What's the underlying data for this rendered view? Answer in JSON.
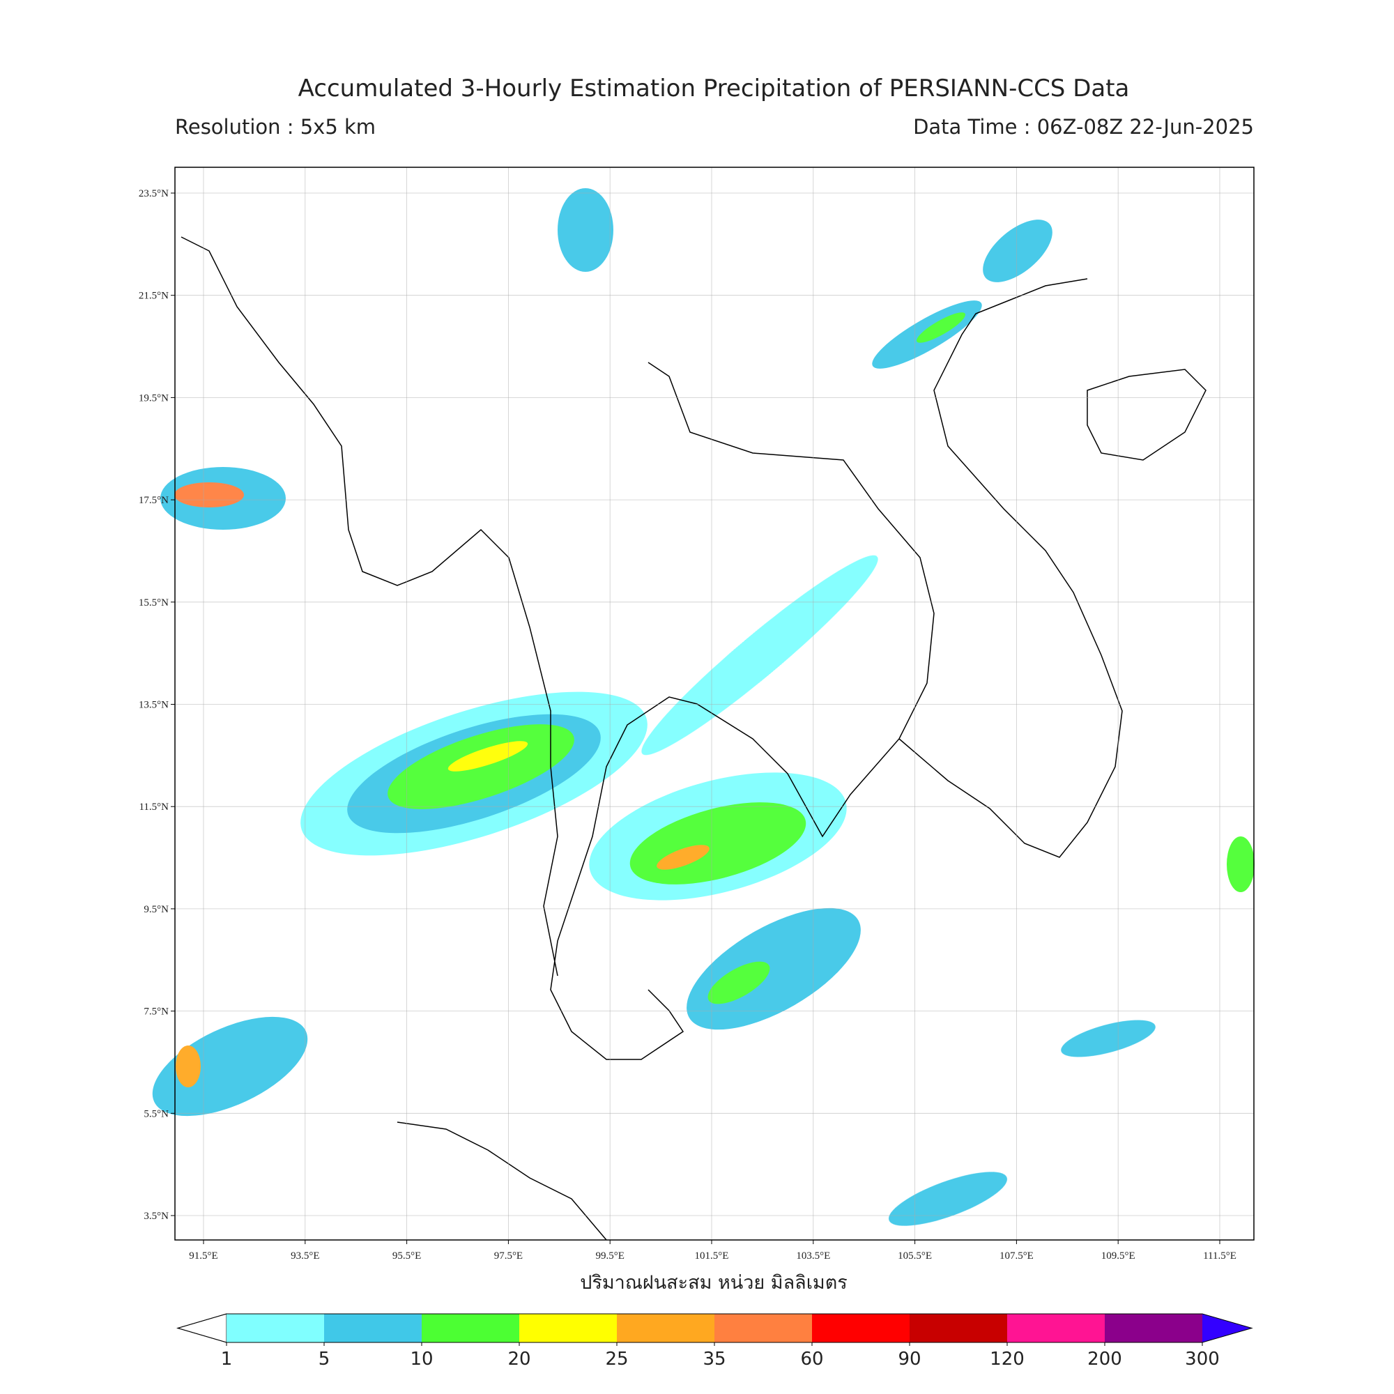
{
  "title": "Accumulated 3-Hourly Estimation Precipitation of PERSIANN-CCS Data",
  "resolution": "Resolution : 5x5 km",
  "data_time": "Data Time : 06Z-08Z 22-Jun-2025",
  "map": {
    "x_ticks": [
      "91.5°E",
      "93.5°E",
      "95.5°E",
      "97.5°E",
      "99.5°E",
      "101.5°E",
      "103.5°E",
      "105.5°E",
      "107.5°E",
      "109.5°E",
      "111.5°E"
    ],
    "y_ticks": [
      "23.5°N",
      "21.5°N",
      "19.5°N",
      "17.5°N",
      "15.5°N",
      "13.5°N",
      "11.5°N",
      "9.5°N",
      "7.5°N",
      "5.5°N",
      "3.5°N"
    ],
    "x_label": "ปริมาณฝนสะสม หน่วย มิลลิเมตร"
  },
  "colorbar": {
    "levels": [
      1,
      5,
      10,
      20,
      25,
      35,
      60,
      90,
      120,
      200,
      300
    ],
    "colors": [
      "#80ffff",
      "#40c8e8",
      "#4cff33",
      "#ffff00",
      "#ffa820",
      "#ff8040",
      "#ff0000",
      "#c80000",
      "#ff1493",
      "#8b008b"
    ],
    "under_color": "#ffffff",
    "over_color": "#3300ff"
  }
}
